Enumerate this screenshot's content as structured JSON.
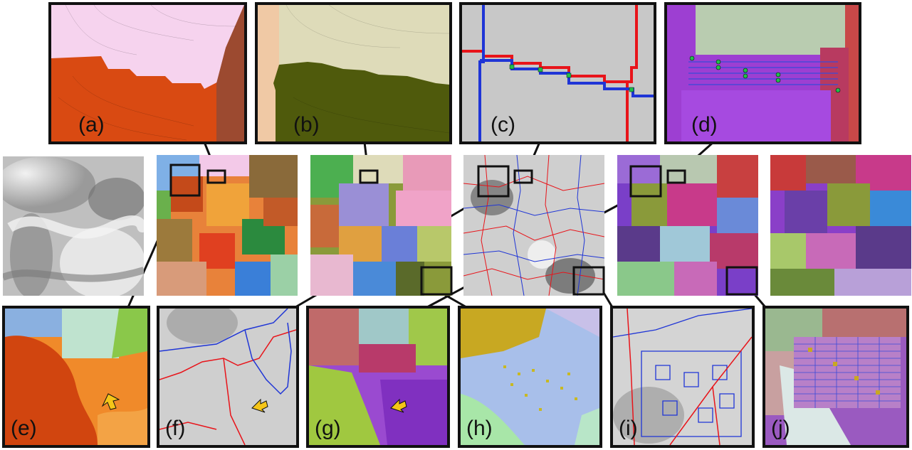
{
  "labels": {
    "a": "(a)",
    "b": "(b)",
    "c": "(c)",
    "d": "(d)",
    "e": "(e)",
    "f": "(f)",
    "g": "(g)",
    "h": "(h)",
    "i": "(i)",
    "j": "(j)"
  },
  "colors": {
    "frame": "#111111",
    "boundary_red": "#e8141a",
    "boundary_blue": "#1f35d6",
    "arrow": "#f5c518",
    "pink": "#f6d3ee",
    "vermilion": "#d94a12",
    "rust": "#9c4a30",
    "khaki": "#dedbb9",
    "olive": "#4f5a0c",
    "violet": "#9d3fd2",
    "sage": "#b9ccb0",
    "gray": "#c8c8c8"
  }
}
